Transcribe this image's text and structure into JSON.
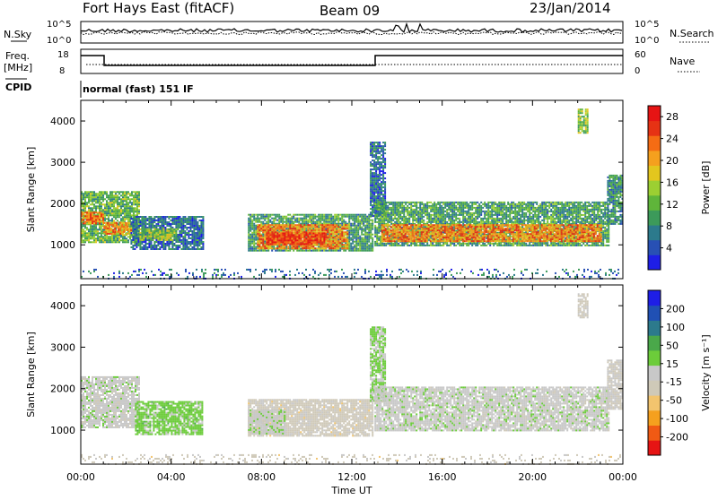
{
  "header": {
    "station": "Fort Hays East (fitACF)",
    "beam": "Beam 09",
    "date": "23/Jan/2014"
  },
  "noise_panel": {
    "left_label": "N.Sky",
    "right_label": "N.Search",
    "left_ticks": [
      "10^5",
      "10^0"
    ],
    "right_ticks": [
      "10^5",
      "10^0"
    ]
  },
  "freq_panel": {
    "left_label_1": "Freq.",
    "left_label_2": "[MHz]",
    "right_label": "Nave",
    "left_ticks": [
      "18",
      "8"
    ],
    "right_ticks": [
      "60",
      "0"
    ]
  },
  "cpid": {
    "label": "CPID",
    "value": "normal (fast) 151 IF"
  },
  "colors": {
    "power_scale": [
      "#1e1ee6",
      "#2850b4",
      "#2c7a8c",
      "#3c9a5a",
      "#5fb53a",
      "#9ccf32",
      "#e3c61e",
      "#f5a01e",
      "#f56c14",
      "#e63214",
      "#e61414"
    ],
    "velocity_scale": [
      "#e61414",
      "#f05a14",
      "#f5a01e",
      "#f2c46e",
      "#cfc9b8",
      "#c8c8c8",
      "#6ccc3a",
      "#4aa84a",
      "#2c7a8c",
      "#2050b4",
      "#1e1ee6"
    ]
  },
  "chart_data": [
    {
      "type": "heatmap",
      "name": "power",
      "xlabel": "Time UT",
      "ylabel": "Slant Range [km]",
      "x_ticks": [
        "00:00",
        "04:00",
        "08:00",
        "12:00",
        "16:00",
        "20:00",
        "00:00"
      ],
      "x_range_hours": [
        0,
        24
      ],
      "y_ticks": [
        1000,
        2000,
        3000,
        4000
      ],
      "ylim": [
        180,
        4500
      ],
      "colorbar": {
        "label": "Power [dB]",
        "ticks": [
          4,
          8,
          12,
          16,
          20,
          24,
          28
        ],
        "range": [
          0,
          30
        ]
      },
      "regions": [
        {
          "t0": 0.0,
          "t1": 2.6,
          "r0": 1050,
          "r1": 2300,
          "v": 12
        },
        {
          "t0": 0.0,
          "t1": 1.0,
          "r0": 1500,
          "r1": 1800,
          "v": 22
        },
        {
          "t0": 1.0,
          "t1": 2.2,
          "r0": 1250,
          "r1": 1550,
          "v": 20
        },
        {
          "t0": 2.2,
          "t1": 5.4,
          "r0": 900,
          "r1": 1700,
          "v": 6
        },
        {
          "t0": 2.6,
          "t1": 4.2,
          "r0": 1100,
          "r1": 1400,
          "v": 14
        },
        {
          "t0": 7.4,
          "t1": 12.9,
          "r0": 850,
          "r1": 1750,
          "v": 10
        },
        {
          "t0": 7.8,
          "t1": 11.8,
          "r0": 900,
          "r1": 1500,
          "v": 22
        },
        {
          "t0": 8.2,
          "t1": 10.8,
          "r0": 1000,
          "r1": 1300,
          "v": 26
        },
        {
          "t0": 12.8,
          "t1": 13.5,
          "r0": 1700,
          "r1": 3500,
          "v": 6
        },
        {
          "t0": 13.0,
          "t1": 23.4,
          "r0": 1000,
          "r1": 2050,
          "v": 10
        },
        {
          "t0": 13.3,
          "t1": 23.0,
          "r0": 1100,
          "r1": 1500,
          "v": 22
        },
        {
          "t0": 23.3,
          "t1": 24.0,
          "r0": 1500,
          "r1": 2700,
          "v": 8
        },
        {
          "t0": 22.0,
          "t1": 22.4,
          "r0": 3700,
          "r1": 4300,
          "v": 14
        },
        {
          "t0": 0.0,
          "t1": 24.0,
          "r0": 200,
          "r1": 420,
          "v": 6
        }
      ]
    },
    {
      "type": "heatmap",
      "name": "velocity",
      "xlabel": "Time UT",
      "ylabel": "Slant Range [km]",
      "x_ticks": [
        "00:00",
        "04:00",
        "08:00",
        "12:00",
        "16:00",
        "20:00",
        "00:00"
      ],
      "x_range_hours": [
        0,
        24
      ],
      "y_ticks": [
        1000,
        2000,
        3000,
        4000
      ],
      "ylim": [
        180,
        4500
      ],
      "colorbar": {
        "label": "Velocity [m s⁻¹]",
        "ticks": [
          "200",
          "100",
          "50",
          "15",
          "-15",
          "-50",
          "-100",
          "-200"
        ],
        "range": [
          -250,
          250
        ]
      },
      "regions": [
        {
          "t0": 0.0,
          "t1": 2.6,
          "r0": 1050,
          "r1": 2300,
          "v": 0
        },
        {
          "t0": 2.4,
          "t1": 5.4,
          "r0": 900,
          "r1": 1700,
          "v": 40
        },
        {
          "t0": 7.4,
          "t1": 12.9,
          "r0": 850,
          "r1": 1750,
          "v": -40
        },
        {
          "t0": 7.4,
          "t1": 9.0,
          "r0": 900,
          "r1": 1500,
          "v": 0
        },
        {
          "t0": 12.8,
          "t1": 13.5,
          "r0": 1700,
          "r1": 3500,
          "v": 30
        },
        {
          "t0": 13.0,
          "t1": 23.4,
          "r0": 1000,
          "r1": 2050,
          "v": 0
        },
        {
          "t0": 23.3,
          "t1": 24.0,
          "r0": 1500,
          "r1": 2700,
          "v": -20
        },
        {
          "t0": 22.0,
          "t1": 22.4,
          "r0": 3700,
          "r1": 4300,
          "v": -30
        },
        {
          "t0": 0.0,
          "t1": 24.0,
          "r0": 200,
          "r1": 420,
          "v": -40
        }
      ]
    }
  ]
}
